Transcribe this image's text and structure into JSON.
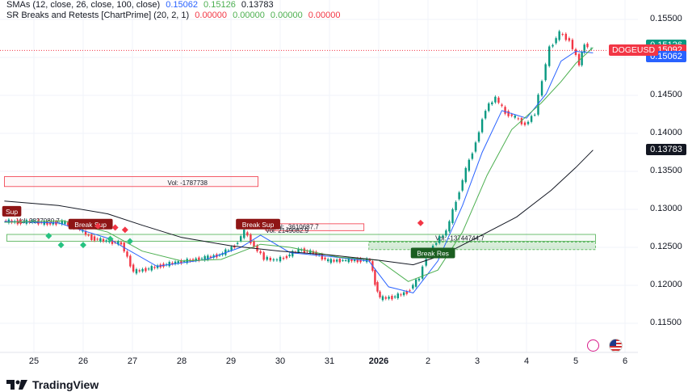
{
  "legend": {
    "sma_title": "SMAs (12, close, 26, close, 100, close)",
    "sma_values": [
      "0.15062",
      "0.15126",
      "0.13783"
    ],
    "sr_title": "SR Breaks and Retests [ChartPrime] (20, 2, 1)",
    "sr_values": [
      "0.00000",
      "0.00000",
      "0.00000",
      "0.00000"
    ]
  },
  "symbol": "DOGEUSD",
  "price_tags": {
    "sma26": "0.15126",
    "last": "0.15092",
    "sma12": "0.15062",
    "sma100": "0.13783"
  },
  "logo": "TradingView",
  "colors": {
    "up": "#089981",
    "down": "#f23645",
    "sma12": "#2962ff",
    "sma26": "#4caf50",
    "sma100": "#131722",
    "support": "#4caf50",
    "resistance": "#f23645"
  },
  "chart_data": {
    "type": "line",
    "title": "",
    "ylim": [
      0.1115,
      0.1562
    ],
    "y_ticks": [
      "0.15500",
      "0.15000",
      "0.14500",
      "0.14000",
      "0.13500",
      "0.13000",
      "0.12500",
      "0.12000",
      "0.11500"
    ],
    "x_ticks": [
      "25",
      "26",
      "27",
      "28",
      "29",
      "30",
      "31",
      "2026",
      "2",
      "3",
      "4",
      "5",
      "6"
    ],
    "x_tick_days": [
      0,
      1,
      2,
      3,
      4,
      5,
      6,
      7,
      8,
      9,
      10,
      11,
      12
    ],
    "price_series": [
      [
        -0.6,
        0.1285
      ],
      [
        -0.3,
        0.1283
      ],
      [
        0.0,
        0.1284
      ],
      [
        0.3,
        0.1281
      ],
      [
        0.6,
        0.1283
      ],
      [
        0.9,
        0.1276
      ],
      [
        1.2,
        0.1262
      ],
      [
        1.5,
        0.1258
      ],
      [
        1.8,
        0.1255
      ],
      [
        2.05,
        0.1218
      ],
      [
        2.3,
        0.1221
      ],
      [
        2.6,
        0.1226
      ],
      [
        2.9,
        0.123
      ],
      [
        3.2,
        0.1233
      ],
      [
        3.5,
        0.1236
      ],
      [
        3.8,
        0.124
      ],
      [
        4.1,
        0.1252
      ],
      [
        4.3,
        0.1271
      ],
      [
        4.5,
        0.1251
      ],
      [
        4.7,
        0.1236
      ],
      [
        4.9,
        0.1233
      ],
      [
        5.1,
        0.1236
      ],
      [
        5.4,
        0.1247
      ],
      [
        5.7,
        0.1243
      ],
      [
        6.0,
        0.1232
      ],
      [
        6.3,
        0.1233
      ],
      [
        6.6,
        0.1233
      ],
      [
        6.85,
        0.1233
      ],
      [
        6.95,
        0.1203
      ],
      [
        7.05,
        0.1183
      ],
      [
        7.3,
        0.1184
      ],
      [
        7.6,
        0.1191
      ],
      [
        7.85,
        0.121
      ],
      [
        8.0,
        0.1237
      ],
      [
        8.2,
        0.1258
      ],
      [
        8.4,
        0.1271
      ],
      [
        8.6,
        0.1311
      ],
      [
        8.8,
        0.1352
      ],
      [
        9.0,
        0.1388
      ],
      [
        9.2,
        0.1432
      ],
      [
        9.4,
        0.1447
      ],
      [
        9.6,
        0.1427
      ],
      [
        9.8,
        0.1421
      ],
      [
        10.0,
        0.1411
      ],
      [
        10.2,
        0.1427
      ],
      [
        10.35,
        0.147
      ],
      [
        10.5,
        0.1512
      ],
      [
        10.7,
        0.1532
      ],
      [
        10.9,
        0.1522
      ],
      [
        11.1,
        0.1492
      ],
      [
        11.2,
        0.1518
      ],
      [
        11.35,
        0.1509
      ]
    ],
    "series": [
      {
        "name": "SMA 12",
        "points": [
          [
            -0.6,
            0.1284
          ],
          [
            0.5,
            0.1282
          ],
          [
            1.5,
            0.1262
          ],
          [
            2.5,
            0.1225
          ],
          [
            3.5,
            0.1234
          ],
          [
            4.2,
            0.125
          ],
          [
            4.6,
            0.1266
          ],
          [
            5.2,
            0.1243
          ],
          [
            6.0,
            0.1238
          ],
          [
            6.8,
            0.1232
          ],
          [
            7.2,
            0.1198
          ],
          [
            7.7,
            0.119
          ],
          [
            8.2,
            0.1232
          ],
          [
            8.7,
            0.1305
          ],
          [
            9.1,
            0.1375
          ],
          [
            9.5,
            0.143
          ],
          [
            10.0,
            0.142
          ],
          [
            10.4,
            0.1452
          ],
          [
            10.7,
            0.1495
          ],
          [
            11.0,
            0.1508
          ],
          [
            11.35,
            0.1506
          ]
        ]
      },
      {
        "name": "SMA 26",
        "points": [
          [
            -0.6,
            0.1283
          ],
          [
            0.6,
            0.1285
          ],
          [
            1.5,
            0.127
          ],
          [
            2.2,
            0.1245
          ],
          [
            3.0,
            0.1232
          ],
          [
            3.8,
            0.1234
          ],
          [
            4.6,
            0.1254
          ],
          [
            5.2,
            0.125
          ],
          [
            6.2,
            0.1237
          ],
          [
            7.0,
            0.1233
          ],
          [
            7.6,
            0.1205
          ],
          [
            8.2,
            0.122
          ],
          [
            8.7,
            0.127
          ],
          [
            9.2,
            0.1345
          ],
          [
            9.7,
            0.1405
          ],
          [
            10.3,
            0.144
          ],
          [
            10.7,
            0.1468
          ],
          [
            11.0,
            0.1492
          ],
          [
            11.35,
            0.1513
          ]
        ]
      },
      {
        "name": "SMA 100",
        "points": [
          [
            -0.6,
            0.1311
          ],
          [
            0.5,
            0.1305
          ],
          [
            1.5,
            0.1294
          ],
          [
            2.2,
            0.1279
          ],
          [
            3.0,
            0.1263
          ],
          [
            4.0,
            0.1252
          ],
          [
            5.0,
            0.1245
          ],
          [
            6.0,
            0.124
          ],
          [
            7.0,
            0.1233
          ],
          [
            7.7,
            0.1227
          ],
          [
            8.3,
            0.124
          ],
          [
            9.0,
            0.1263
          ],
          [
            9.8,
            0.129
          ],
          [
            10.5,
            0.1325
          ],
          [
            11.0,
            0.1355
          ],
          [
            11.35,
            0.1378
          ]
        ]
      }
    ],
    "resistance_zones": [
      {
        "x": [
          -0.6,
          4.55
        ],
        "y": [
          0.133,
          0.1343
        ],
        "label": "Vol: -1787738"
      },
      {
        "x": [
          4.7,
          6.7
        ],
        "y": [
          0.1272,
          0.1281
        ],
        "label": "Vol: -3610687.7"
      }
    ],
    "support_zones": [
      {
        "x": [
          -0.55,
          11.4
        ],
        "y": [
          0.1258,
          0.1267
        ],
        "label": "Vol: 2149082.9"
      },
      {
        "x": [
          6.8,
          11.4
        ],
        "y": [
          0.1247,
          0.1257
        ],
        "label": "Vol: -13744744.7"
      }
    ],
    "zone_labels_extra": [
      "Vol: 3827080.7"
    ],
    "signals": [
      {
        "text": "Sup",
        "x": -0.45,
        "y": 0.1297
      },
      {
        "text": "Break Sup",
        "x": 1.15,
        "y": 0.128
      },
      {
        "text": "Break Sup",
        "x": 4.55,
        "y": 0.128
      },
      {
        "text": "Break Res",
        "x": 8.1,
        "y": 0.1242
      }
    ],
    "diamonds_green": [
      [
        0.3,
        0.1265
      ],
      [
        0.55,
        0.1253
      ],
      [
        1.0,
        0.1253
      ],
      [
        1.55,
        0.1261
      ],
      [
        1.95,
        0.1258
      ]
    ],
    "diamonds_red": [
      [
        1.3,
        0.1278
      ],
      [
        1.65,
        0.1276
      ],
      [
        1.85,
        0.1273
      ],
      [
        7.85,
        0.1282
      ]
    ],
    "last_price": 0.15092
  }
}
